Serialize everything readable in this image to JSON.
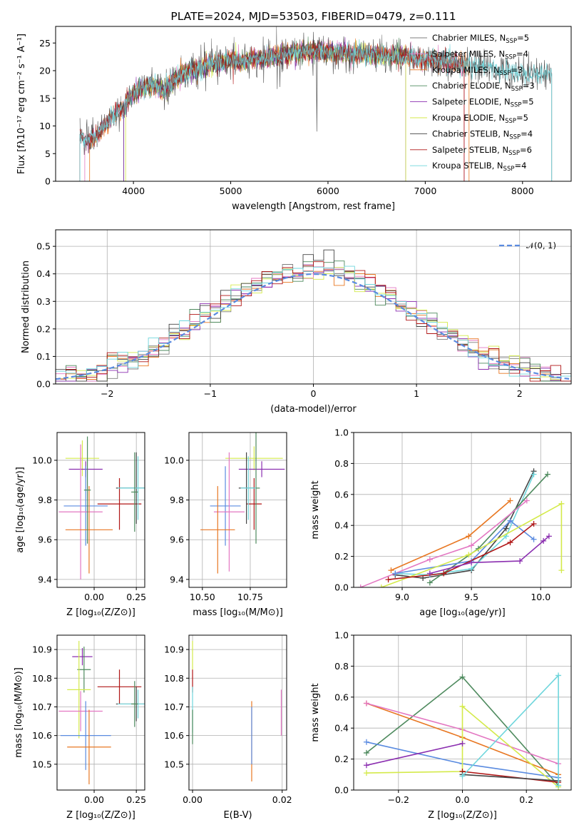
{
  "colors": {
    "chabrier_miles": "#7f7f7f",
    "salpeter_miles": "#e377c2",
    "kroupa_miles": "#e87722",
    "chabrier_elodie": "#4e8a5e",
    "salpeter_elodie": "#8b2fb0",
    "kroupa_elodie": "#d4ea4a",
    "chabrier_stelib": "#444444",
    "salpeter_stelib": "#b01616",
    "kroupa_stelib": "#6fd6dc",
    "blue_series": "#5a8be0",
    "gauss": "#5a8be0"
  },
  "chart_data": [
    {
      "id": "spectrum",
      "type": "line",
      "title": "PLATE=2024, MJD=53503, FIBERID=0479, z=0.111",
      "xlabel": "wavelength [Angstrom, rest frame]",
      "ylabel": "Flux [fλ10⁻¹⁷ erg cm⁻² s⁻¹ A⁻¹]",
      "xlim": [
        3200,
        8500
      ],
      "ylim": [
        0,
        28
      ],
      "xticks": [
        4000,
        5000,
        6000,
        7000,
        8000
      ],
      "yticks": [
        0,
        5,
        10,
        15,
        20,
        25
      ],
      "grid": false,
      "legend_position": "right",
      "envelope": [
        [
          3450,
          8.5
        ],
        [
          3500,
          7.5
        ],
        [
          3550,
          7.5
        ],
        [
          3600,
          8.0
        ],
        [
          3650,
          9.0
        ],
        [
          3700,
          10.0
        ],
        [
          3750,
          11.0
        ],
        [
          3800,
          12.0
        ],
        [
          3850,
          13.0
        ],
        [
          3900,
          13.0
        ],
        [
          3950,
          15.0
        ],
        [
          4000,
          16.0
        ],
        [
          4100,
          17.0
        ],
        [
          4200,
          17.5
        ],
        [
          4300,
          16.5
        ],
        [
          4400,
          18.0
        ],
        [
          4500,
          19.5
        ],
        [
          4600,
          20.0
        ],
        [
          4700,
          20.5
        ],
        [
          4800,
          21.0
        ],
        [
          4900,
          21.5
        ],
        [
          5000,
          22.0
        ],
        [
          5100,
          21.5
        ],
        [
          5200,
          22.0
        ],
        [
          5400,
          22.5
        ],
        [
          5600,
          23.0
        ],
        [
          5800,
          23.5
        ],
        [
          6000,
          23.5
        ],
        [
          6200,
          23.0
        ],
        [
          6400,
          23.0
        ],
        [
          6600,
          22.5
        ],
        [
          6800,
          22.5
        ],
        [
          7000,
          22.0
        ],
        [
          7200,
          21.5
        ],
        [
          7400,
          21.0
        ],
        [
          7600,
          20.5
        ],
        [
          7800,
          20.0
        ],
        [
          8000,
          19.8
        ],
        [
          8200,
          19.5
        ],
        [
          8300,
          19.5
        ]
      ],
      "models": [
        {
          "name": "Chabrier MILES, N",
          "nssp": "=5",
          "color_key": "chabrier_miles",
          "xmin": 3450,
          "xmax": 7400
        },
        {
          "name": "Salpeter MILES, N",
          "nssp": "=4",
          "color_key": "salpeter_miles",
          "xmin": 3500,
          "xmax": 7400
        },
        {
          "name": "Kroupa MILES, N",
          "nssp": "=3",
          "color_key": "kroupa_miles",
          "xmin": 3550,
          "xmax": 7450
        },
        {
          "name": "Chabrier ELODIE, N",
          "nssp": "=3",
          "color_key": "chabrier_elodie",
          "xmin": 3900,
          "xmax": 6800
        },
        {
          "name": "Salpeter ELODIE, N",
          "nssp": "=5",
          "color_key": "salpeter_elodie",
          "xmin": 3900,
          "xmax": 6800
        },
        {
          "name": "Kroupa ELODIE, N",
          "nssp": "=5",
          "color_key": "kroupa_elodie",
          "xmin": 3920,
          "xmax": 6800
        },
        {
          "name": "Chabrier STELIB, N",
          "nssp": "=4",
          "color_key": "chabrier_stelib",
          "xmin": 3450,
          "xmax": 8300
        },
        {
          "name": "Salpeter STELIB, N",
          "nssp": "=6",
          "color_key": "salpeter_stelib",
          "xmin": 3450,
          "xmax": 7400
        },
        {
          "name": "Kroupa STELIB, N",
          "nssp": "=4",
          "color_key": "kroupa_stelib",
          "xmin": 3450,
          "xmax": 8300
        }
      ]
    },
    {
      "id": "residuals",
      "type": "histogram",
      "xlabel": "(data-model)/error",
      "ylabel": "Normed distribution",
      "xlim": [
        -2.5,
        2.5
      ],
      "ylim": [
        0,
        0.56
      ],
      "xticks": [
        -2,
        -1,
        0,
        1,
        2
      ],
      "yticks": [
        0.0,
        0.1,
        0.2,
        0.3,
        0.4,
        0.5
      ],
      "grid": true,
      "bin_width": 0.1,
      "gaussian_label": "𝒩(0, 1)",
      "legend_position": "upper right",
      "series_color_keys": [
        "chabrier_miles",
        "salpeter_miles",
        "kroupa_miles",
        "chabrier_elodie",
        "salpeter_elodie",
        "kroupa_elodie",
        "chabrier_stelib",
        "salpeter_stelib",
        "kroupa_stelib"
      ]
    },
    {
      "id": "age_vs_Z",
      "type": "errorbar",
      "xlabel": "Z [log₁₀(Z/Z⊙)]",
      "ylabel": "age  [log₁₀(age/yr)]",
      "xlim": [
        -0.22,
        0.3
      ],
      "ylim": [
        9.36,
        10.14
      ],
      "xticks": [
        0.0,
        0.25
      ],
      "yticks": [
        9.4,
        9.6,
        9.8,
        10.0
      ],
      "points": [
        {
          "x": -0.07,
          "y": 10.01,
          "xerr": 0.1,
          "yerr": 0.09,
          "color_key": "kroupa_elodie"
        },
        {
          "x": -0.05,
          "y": 9.955,
          "xerr": 0.1,
          "yerr": 0.04,
          "color_key": "salpeter_elodie"
        },
        {
          "x": -0.05,
          "y": 9.77,
          "xerr": 0.13,
          "yerr": 0.2,
          "color_key": "blue_series"
        },
        {
          "x": -0.08,
          "y": 9.74,
          "xerr": 0.13,
          "yerr": 0.34,
          "color_key": "salpeter_miles"
        },
        {
          "x": -0.03,
          "y": 9.65,
          "xerr": 0.14,
          "yerr": 0.22,
          "color_key": "kroupa_miles"
        },
        {
          "x": -0.04,
          "y": 9.85,
          "xerr": 0.02,
          "yerr": 0.27,
          "color_key": "chabrier_elodie"
        },
        {
          "x": 0.15,
          "y": 9.78,
          "xerr": 0.13,
          "yerr": 0.13,
          "color_key": "salpeter_stelib"
        },
        {
          "x": 0.25,
          "y": 9.86,
          "xerr": 0.12,
          "yerr": 0.18,
          "color_key": "chabrier_stelib"
        },
        {
          "x": 0.26,
          "y": 9.86,
          "xerr": 0.12,
          "yerr": 0.16,
          "color_key": "kroupa_stelib"
        },
        {
          "x": 0.24,
          "y": 9.84,
          "xerr": 0.02,
          "yerr": 0.2,
          "color_key": "chabrier_elodie"
        }
      ]
    },
    {
      "id": "age_vs_mass",
      "type": "errorbar",
      "xlabel": "mass [log₁₀(M/M⊙)]",
      "ylabel": "",
      "xlim": [
        10.43,
        10.94
      ],
      "ylim": [
        9.36,
        10.14
      ],
      "xticks": [
        10.5,
        10.75
      ],
      "yticks": [
        9.4,
        9.6,
        9.8,
        10.0
      ],
      "points": [
        {
          "x": 10.77,
          "y": 10.01,
          "xerr": 0.15,
          "yerr": 0.06,
          "color_key": "kroupa_elodie"
        },
        {
          "x": 10.81,
          "y": 9.955,
          "xerr": 0.12,
          "yerr": 0.04,
          "color_key": "salpeter_elodie"
        },
        {
          "x": 10.62,
          "y": 9.77,
          "xerr": 0.08,
          "yerr": 0.2,
          "color_key": "blue_series"
        },
        {
          "x": 10.64,
          "y": 9.74,
          "xerr": 0.08,
          "yerr": 0.3,
          "color_key": "salpeter_miles"
        },
        {
          "x": 10.58,
          "y": 9.65,
          "xerr": 0.09,
          "yerr": 0.22,
          "color_key": "kroupa_miles"
        },
        {
          "x": 10.77,
          "y": 9.78,
          "xerr": 0.04,
          "yerr": 0.13,
          "color_key": "salpeter_stelib"
        },
        {
          "x": 10.73,
          "y": 9.86,
          "xerr": 0.04,
          "yerr": 0.18,
          "color_key": "chabrier_stelib"
        },
        {
          "x": 10.78,
          "y": 9.86,
          "xerr": 0.02,
          "yerr": 0.28,
          "color_key": "chabrier_elodie"
        },
        {
          "x": 10.74,
          "y": 9.86,
          "xerr": 0.04,
          "yerr": 0.16,
          "color_key": "kroupa_stelib"
        }
      ]
    },
    {
      "id": "weight_vs_age",
      "type": "line",
      "xlabel": "age  [log₁₀(age/yr)]",
      "ylabel": "mass weight",
      "xlim": [
        8.65,
        10.22
      ],
      "ylim": [
        0,
        1.0
      ],
      "xticks": [
        9.0,
        9.5,
        10.0
      ],
      "yticks": [
        0.0,
        0.2,
        0.4,
        0.6,
        0.8,
        1.0
      ],
      "grid": true,
      "series": [
        {
          "color_key": "chabrier_stelib",
          "points": [
            [
              8.95,
              0.08
            ],
            [
              9.15,
              0.06
            ],
            [
              9.5,
              0.11
            ],
            [
              9.75,
              0.38
            ],
            [
              9.95,
              0.75
            ]
          ]
        },
        {
          "color_key": "kroupa_stelib",
          "points": [
            [
              8.95,
              0.09
            ],
            [
              9.2,
              0.08
            ],
            [
              9.5,
              0.12
            ],
            [
              9.75,
              0.33
            ],
            [
              9.95,
              0.73
            ]
          ]
        },
        {
          "color_key": "chabrier_elodie",
          "points": [
            [
              9.2,
              0.03
            ],
            [
              9.55,
              0.25
            ],
            [
              10.05,
              0.73
            ]
          ]
        },
        {
          "color_key": "kroupa_miles",
          "points": [
            [
              8.92,
              0.11
            ],
            [
              9.48,
              0.33
            ],
            [
              9.78,
              0.56
            ]
          ]
        },
        {
          "color_key": "salpeter_miles",
          "points": [
            [
              8.7,
              0.0
            ],
            [
              9.2,
              0.18
            ],
            [
              9.5,
              0.27
            ],
            [
              9.9,
              0.56
            ]
          ]
        },
        {
          "color_key": "blue_series",
          "points": [
            [
              8.95,
              0.09
            ],
            [
              9.5,
              0.17
            ],
            [
              9.78,
              0.43
            ],
            [
              9.95,
              0.31
            ]
          ]
        },
        {
          "color_key": "kroupa_elodie",
          "points": [
            [
              8.85,
              0.0
            ],
            [
              9.48,
              0.21
            ],
            [
              10.15,
              0.54
            ],
            [
              10.15,
              0.11
            ]
          ]
        },
        {
          "color_key": "salpeter_stelib",
          "points": [
            [
              8.9,
              0.05
            ],
            [
              9.3,
              0.09
            ],
            [
              9.78,
              0.29
            ],
            [
              9.95,
              0.41
            ]
          ]
        },
        {
          "color_key": "salpeter_elodie",
          "points": [
            [
              9.2,
              0.09
            ],
            [
              9.5,
              0.16
            ],
            [
              9.85,
              0.17
            ],
            [
              10.02,
              0.3
            ],
            [
              10.06,
              0.33
            ]
          ]
        }
      ]
    },
    {
      "id": "mass_vs_Z",
      "type": "errorbar",
      "xlabel": "Z [log₁₀(Z/Z⊙)]",
      "ylabel": "mass [log₁₀(M/M⊙)]",
      "xlim": [
        -0.22,
        0.3
      ],
      "ylim": [
        10.41,
        10.95
      ],
      "xticks": [
        0.0,
        0.25
      ],
      "yticks": [
        10.5,
        10.6,
        10.7,
        10.8,
        10.9
      ],
      "points": [
        {
          "x": -0.07,
          "y": 10.875,
          "xerr": 0.06,
          "yerr": 0.03,
          "color_key": "salpeter_elodie"
        },
        {
          "x": -0.06,
          "y": 10.83,
          "xerr": 0.04,
          "yerr": 0.08,
          "color_key": "chabrier_elodie"
        },
        {
          "x": -0.09,
          "y": 10.76,
          "xerr": 0.07,
          "yerr": 0.17,
          "color_key": "kroupa_elodie"
        },
        {
          "x": 0.15,
          "y": 10.77,
          "xerr": 0.13,
          "yerr": 0.06,
          "color_key": "salpeter_stelib"
        },
        {
          "x": 0.25,
          "y": 10.71,
          "xerr": 0.12,
          "yerr": 0.06,
          "color_key": "chabrier_stelib"
        },
        {
          "x": 0.26,
          "y": 10.71,
          "xerr": 0.12,
          "yerr": 0.05,
          "color_key": "kroupa_stelib"
        },
        {
          "x": 0.24,
          "y": 10.71,
          "xerr": 0.02,
          "yerr": 0.08,
          "color_key": "chabrier_elodie"
        },
        {
          "x": -0.08,
          "y": 10.685,
          "xerr": 0.13,
          "yerr": 0.07,
          "color_key": "salpeter_miles"
        },
        {
          "x": -0.05,
          "y": 10.6,
          "xerr": 0.15,
          "yerr": 0.12,
          "color_key": "blue_series"
        },
        {
          "x": -0.03,
          "y": 10.56,
          "xerr": 0.13,
          "yerr": 0.13,
          "color_key": "kroupa_miles"
        }
      ]
    },
    {
      "id": "mass_vs_ebv",
      "type": "errorbar",
      "xlabel": "E(B-V)",
      "ylabel": "",
      "xlim": [
        -0.0008,
        0.021
      ],
      "ylim": [
        10.41,
        10.95
      ],
      "xticks": [
        0.0,
        0.02
      ],
      "yticks": [
        10.5,
        10.6,
        10.7,
        10.8,
        10.9
      ],
      "points": [
        {
          "x": 0.0,
          "y": 10.88,
          "xerr": 0,
          "yerr": 0.05,
          "color_key": "kroupa_elodie"
        },
        {
          "x": 0.0,
          "y": 10.79,
          "xerr": 0,
          "yerr": 0.04,
          "color_key": "salpeter_stelib"
        },
        {
          "x": 0.0,
          "y": 10.69,
          "xerr": 0,
          "yerr": 0.08,
          "color_key": "kroupa_stelib"
        },
        {
          "x": 0.0,
          "y": 10.63,
          "xerr": 0,
          "yerr": 0.06,
          "color_key": "chabrier_elodie"
        },
        {
          "x": 0.0132,
          "y": 10.58,
          "xerr": 0,
          "yerr": 0.14,
          "color_key": "kroupa_miles"
        },
        {
          "x": 0.0132,
          "y": 10.6,
          "xerr": 0,
          "yerr": 0.1,
          "color_key": "blue_series"
        },
        {
          "x": 0.0198,
          "y": 10.68,
          "xerr": 0,
          "yerr": 0.08,
          "color_key": "salpeter_miles"
        }
      ]
    },
    {
      "id": "weight_vs_Z",
      "type": "line",
      "xlabel": "Z [log₁₀(Z/Z⊙)]",
      "ylabel": "mass weight",
      "xlim": [
        -0.34,
        0.34
      ],
      "ylim": [
        0,
        1.0
      ],
      "xticks": [
        -0.2,
        0.0,
        0.2
      ],
      "yticks": [
        0.0,
        0.2,
        0.4,
        0.6,
        0.8,
        1.0
      ],
      "grid": true,
      "series": [
        {
          "color_key": "chabrier_elodie",
          "points": [
            [
              -0.3,
              0.24
            ],
            [
              0.0,
              0.73
            ],
            [
              0.3,
              0.03
            ]
          ]
        },
        {
          "color_key": "kroupa_miles",
          "points": [
            [
              -0.3,
              0.56
            ],
            [
              0.0,
              0.34
            ],
            [
              0.3,
              0.1
            ]
          ]
        },
        {
          "color_key": "salpeter_miles",
          "points": [
            [
              -0.3,
              0.56
            ],
            [
              0.0,
              0.39
            ],
            [
              0.3,
              0.17
            ]
          ]
        },
        {
          "color_key": "blue_series",
          "points": [
            [
              -0.3,
              0.31
            ],
            [
              0.0,
              0.17
            ],
            [
              0.3,
              0.08
            ]
          ]
        },
        {
          "color_key": "kroupa_elodie",
          "points": [
            [
              -0.3,
              0.11
            ],
            [
              0.0,
              0.12
            ],
            [
              0.0,
              0.54
            ],
            [
              0.3,
              0.02
            ]
          ]
        },
        {
          "color_key": "salpeter_elodie",
          "points": [
            [
              -0.3,
              0.16
            ],
            [
              0.0,
              0.3
            ]
          ]
        },
        {
          "color_key": "salpeter_stelib",
          "points": [
            [
              0.0,
              0.12
            ],
            [
              0.3,
              0.05
            ]
          ]
        },
        {
          "color_key": "chabrier_stelib",
          "points": [
            [
              0.0,
              0.1
            ],
            [
              0.3,
              0.06
            ]
          ]
        },
        {
          "color_key": "kroupa_stelib",
          "points": [
            [
              0.0,
              0.09
            ],
            [
              0.3,
              0.74
            ],
            [
              0.3,
              0.03
            ]
          ]
        }
      ]
    }
  ]
}
